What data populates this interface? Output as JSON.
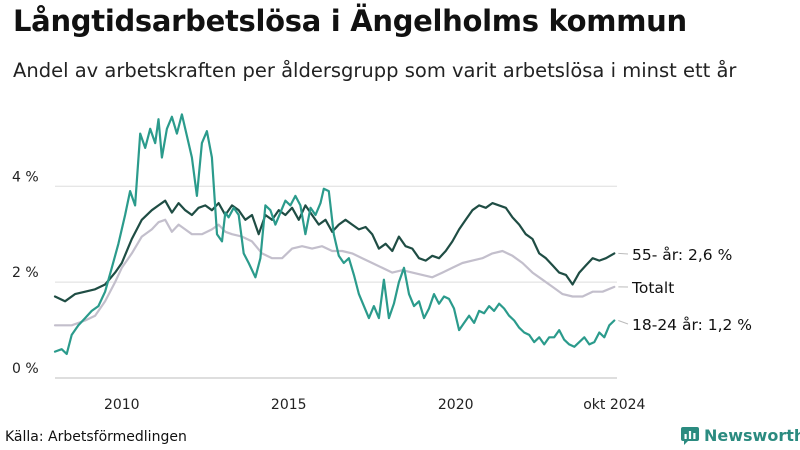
{
  "brand": {
    "name": "Newsworthy",
    "icon": "newsworthy-logo-icon",
    "color": "#2b8b80"
  },
  "source": "Källa: Arbetsförmedlingen",
  "chart_data": {
    "type": "line",
    "title": "Långtidsarbetslösa i Ängelholms kommun",
    "subtitle": "Andel av arbetskraften per åldersgrupp som varit arbetslösa i minst ett år",
    "xlabel": "",
    "ylabel": "",
    "xlim": [
      2008.0,
      2024.83
    ],
    "ylim": [
      0,
      5.8
    ],
    "y_ticks": [
      {
        "value": 0,
        "label": "0 %"
      },
      {
        "value": 2,
        "label": "2 %"
      },
      {
        "value": 4,
        "label": "4 %"
      }
    ],
    "x_ticks": [
      {
        "value": 2010,
        "label": "2010"
      },
      {
        "value": 2015,
        "label": "2015"
      },
      {
        "value": 2020,
        "label": "2020"
      },
      {
        "value": 2024.75,
        "label": "okt 2024"
      }
    ],
    "grid": "horizontal",
    "legend": "end-labels",
    "series": [
      {
        "name": "55- år",
        "end_label": "55- år: 2,6 %",
        "color": "#1f4d44",
        "points": [
          [
            2008.0,
            1.7
          ],
          [
            2008.3,
            1.6
          ],
          [
            2008.6,
            1.75
          ],
          [
            2008.9,
            1.8
          ],
          [
            2009.2,
            1.85
          ],
          [
            2009.5,
            1.95
          ],
          [
            2009.8,
            2.2
          ],
          [
            2010.0,
            2.4
          ],
          [
            2010.3,
            2.9
          ],
          [
            2010.6,
            3.3
          ],
          [
            2010.9,
            3.5
          ],
          [
            2011.1,
            3.6
          ],
          [
            2011.3,
            3.7
          ],
          [
            2011.5,
            3.45
          ],
          [
            2011.7,
            3.65
          ],
          [
            2011.9,
            3.5
          ],
          [
            2012.1,
            3.4
          ],
          [
            2012.3,
            3.55
          ],
          [
            2012.5,
            3.6
          ],
          [
            2012.7,
            3.5
          ],
          [
            2012.9,
            3.65
          ],
          [
            2013.1,
            3.4
          ],
          [
            2013.3,
            3.6
          ],
          [
            2013.5,
            3.5
          ],
          [
            2013.7,
            3.3
          ],
          [
            2013.9,
            3.4
          ],
          [
            2014.1,
            3.0
          ],
          [
            2014.3,
            3.4
          ],
          [
            2014.5,
            3.3
          ],
          [
            2014.7,
            3.5
          ],
          [
            2014.9,
            3.4
          ],
          [
            2015.1,
            3.55
          ],
          [
            2015.3,
            3.3
          ],
          [
            2015.5,
            3.6
          ],
          [
            2015.7,
            3.4
          ],
          [
            2015.9,
            3.2
          ],
          [
            2016.1,
            3.3
          ],
          [
            2016.3,
            3.05
          ],
          [
            2016.5,
            3.2
          ],
          [
            2016.7,
            3.3
          ],
          [
            2016.9,
            3.2
          ],
          [
            2017.1,
            3.1
          ],
          [
            2017.3,
            3.15
          ],
          [
            2017.5,
            3.0
          ],
          [
            2017.7,
            2.7
          ],
          [
            2017.9,
            2.8
          ],
          [
            2018.1,
            2.65
          ],
          [
            2018.3,
            2.95
          ],
          [
            2018.5,
            2.75
          ],
          [
            2018.7,
            2.7
          ],
          [
            2018.9,
            2.5
          ],
          [
            2019.1,
            2.45
          ],
          [
            2019.3,
            2.55
          ],
          [
            2019.5,
            2.5
          ],
          [
            2019.7,
            2.65
          ],
          [
            2019.9,
            2.85
          ],
          [
            2020.1,
            3.1
          ],
          [
            2020.3,
            3.3
          ],
          [
            2020.5,
            3.5
          ],
          [
            2020.7,
            3.6
          ],
          [
            2020.9,
            3.55
          ],
          [
            2021.1,
            3.65
          ],
          [
            2021.3,
            3.6
          ],
          [
            2021.5,
            3.55
          ],
          [
            2021.7,
            3.35
          ],
          [
            2021.9,
            3.2
          ],
          [
            2022.1,
            3.0
          ],
          [
            2022.3,
            2.9
          ],
          [
            2022.5,
            2.6
          ],
          [
            2022.7,
            2.5
          ],
          [
            2022.9,
            2.35
          ],
          [
            2023.1,
            2.2
          ],
          [
            2023.3,
            2.15
          ],
          [
            2023.5,
            1.95
          ],
          [
            2023.7,
            2.2
          ],
          [
            2023.9,
            2.35
          ],
          [
            2024.1,
            2.5
          ],
          [
            2024.3,
            2.45
          ],
          [
            2024.5,
            2.5
          ],
          [
            2024.75,
            2.6
          ]
        ]
      },
      {
        "name": "Totalt",
        "end_label": "Totalt",
        "color": "#c3bfcc",
        "points": [
          [
            2008.0,
            1.1
          ],
          [
            2008.5,
            1.1
          ],
          [
            2008.9,
            1.2
          ],
          [
            2009.2,
            1.3
          ],
          [
            2009.5,
            1.6
          ],
          [
            2009.8,
            2.0
          ],
          [
            2010.0,
            2.3
          ],
          [
            2010.3,
            2.6
          ],
          [
            2010.6,
            2.95
          ],
          [
            2010.9,
            3.1
          ],
          [
            2011.1,
            3.25
          ],
          [
            2011.3,
            3.3
          ],
          [
            2011.5,
            3.05
          ],
          [
            2011.7,
            3.2
          ],
          [
            2011.9,
            3.1
          ],
          [
            2012.1,
            3.0
          ],
          [
            2012.4,
            3.0
          ],
          [
            2012.7,
            3.1
          ],
          [
            2012.9,
            3.2
          ],
          [
            2013.1,
            3.05
          ],
          [
            2013.3,
            3.0
          ],
          [
            2013.6,
            2.95
          ],
          [
            2013.9,
            2.85
          ],
          [
            2014.2,
            2.6
          ],
          [
            2014.5,
            2.5
          ],
          [
            2014.8,
            2.5
          ],
          [
            2015.1,
            2.7
          ],
          [
            2015.4,
            2.75
          ],
          [
            2015.7,
            2.7
          ],
          [
            2016.0,
            2.75
          ],
          [
            2016.3,
            2.65
          ],
          [
            2016.6,
            2.65
          ],
          [
            2016.9,
            2.6
          ],
          [
            2017.2,
            2.5
          ],
          [
            2017.5,
            2.4
          ],
          [
            2017.8,
            2.3
          ],
          [
            2018.1,
            2.2
          ],
          [
            2018.4,
            2.25
          ],
          [
            2018.7,
            2.2
          ],
          [
            2019.0,
            2.15
          ],
          [
            2019.3,
            2.1
          ],
          [
            2019.6,
            2.2
          ],
          [
            2019.9,
            2.3
          ],
          [
            2020.2,
            2.4
          ],
          [
            2020.5,
            2.45
          ],
          [
            2020.8,
            2.5
          ],
          [
            2021.1,
            2.6
          ],
          [
            2021.4,
            2.65
          ],
          [
            2021.7,
            2.55
          ],
          [
            2022.0,
            2.4
          ],
          [
            2022.3,
            2.2
          ],
          [
            2022.6,
            2.05
          ],
          [
            2022.9,
            1.9
          ],
          [
            2023.2,
            1.75
          ],
          [
            2023.5,
            1.7
          ],
          [
            2023.8,
            1.7
          ],
          [
            2024.1,
            1.8
          ],
          [
            2024.4,
            1.8
          ],
          [
            2024.75,
            1.9
          ]
        ]
      },
      {
        "name": "18-24 år",
        "end_label": "18-24 år: 1,2 %",
        "color": "#2b9b8c",
        "points": [
          [
            2008.0,
            0.55
          ],
          [
            2008.2,
            0.6
          ],
          [
            2008.35,
            0.5
          ],
          [
            2008.5,
            0.9
          ],
          [
            2008.7,
            1.1
          ],
          [
            2008.9,
            1.25
          ],
          [
            2009.1,
            1.4
          ],
          [
            2009.3,
            1.5
          ],
          [
            2009.5,
            1.8
          ],
          [
            2009.7,
            2.3
          ],
          [
            2009.9,
            2.8
          ],
          [
            2010.1,
            3.4
          ],
          [
            2010.25,
            3.9
          ],
          [
            2010.4,
            3.6
          ],
          [
            2010.55,
            5.1
          ],
          [
            2010.7,
            4.8
          ],
          [
            2010.85,
            5.2
          ],
          [
            2011.0,
            4.9
          ],
          [
            2011.1,
            5.4
          ],
          [
            2011.2,
            4.6
          ],
          [
            2011.35,
            5.2
          ],
          [
            2011.5,
            5.45
          ],
          [
            2011.65,
            5.1
          ],
          [
            2011.8,
            5.5
          ],
          [
            2011.95,
            5.05
          ],
          [
            2012.1,
            4.6
          ],
          [
            2012.25,
            3.8
          ],
          [
            2012.4,
            4.9
          ],
          [
            2012.55,
            5.15
          ],
          [
            2012.7,
            4.6
          ],
          [
            2012.85,
            3.0
          ],
          [
            2013.0,
            2.85
          ],
          [
            2013.1,
            3.45
          ],
          [
            2013.2,
            3.35
          ],
          [
            2013.35,
            3.55
          ],
          [
            2013.5,
            3.4
          ],
          [
            2013.65,
            2.6
          ],
          [
            2013.8,
            2.4
          ],
          [
            2014.0,
            2.1
          ],
          [
            2014.15,
            2.5
          ],
          [
            2014.3,
            3.6
          ],
          [
            2014.45,
            3.5
          ],
          [
            2014.6,
            3.2
          ],
          [
            2014.75,
            3.45
          ],
          [
            2014.9,
            3.7
          ],
          [
            2015.05,
            3.6
          ],
          [
            2015.2,
            3.8
          ],
          [
            2015.35,
            3.6
          ],
          [
            2015.5,
            3.0
          ],
          [
            2015.65,
            3.55
          ],
          [
            2015.8,
            3.4
          ],
          [
            2015.95,
            3.65
          ],
          [
            2016.05,
            3.95
          ],
          [
            2016.2,
            3.9
          ],
          [
            2016.35,
            3.0
          ],
          [
            2016.5,
            2.55
          ],
          [
            2016.65,
            2.4
          ],
          [
            2016.8,
            2.5
          ],
          [
            2016.95,
            2.15
          ],
          [
            2017.1,
            1.75
          ],
          [
            2017.25,
            1.5
          ],
          [
            2017.4,
            1.25
          ],
          [
            2017.55,
            1.5
          ],
          [
            2017.7,
            1.25
          ],
          [
            2017.85,
            2.05
          ],
          [
            2018.0,
            1.25
          ],
          [
            2018.15,
            1.55
          ],
          [
            2018.3,
            2.0
          ],
          [
            2018.45,
            2.3
          ],
          [
            2018.6,
            1.75
          ],
          [
            2018.75,
            1.5
          ],
          [
            2018.9,
            1.6
          ],
          [
            2019.05,
            1.25
          ],
          [
            2019.2,
            1.45
          ],
          [
            2019.35,
            1.75
          ],
          [
            2019.5,
            1.55
          ],
          [
            2019.65,
            1.7
          ],
          [
            2019.8,
            1.65
          ],
          [
            2019.95,
            1.45
          ],
          [
            2020.1,
            1.0
          ],
          [
            2020.25,
            1.15
          ],
          [
            2020.4,
            1.3
          ],
          [
            2020.55,
            1.15
          ],
          [
            2020.7,
            1.4
          ],
          [
            2020.85,
            1.35
          ],
          [
            2021.0,
            1.5
          ],
          [
            2021.15,
            1.4
          ],
          [
            2021.3,
            1.55
          ],
          [
            2021.45,
            1.45
          ],
          [
            2021.6,
            1.3
          ],
          [
            2021.75,
            1.2
          ],
          [
            2021.9,
            1.05
          ],
          [
            2022.05,
            0.95
          ],
          [
            2022.2,
            0.9
          ],
          [
            2022.35,
            0.75
          ],
          [
            2022.5,
            0.85
          ],
          [
            2022.65,
            0.7
          ],
          [
            2022.8,
            0.85
          ],
          [
            2022.95,
            0.85
          ],
          [
            2023.1,
            1.0
          ],
          [
            2023.25,
            0.8
          ],
          [
            2023.4,
            0.7
          ],
          [
            2023.55,
            0.65
          ],
          [
            2023.7,
            0.75
          ],
          [
            2023.85,
            0.85
          ],
          [
            2024.0,
            0.7
          ],
          [
            2024.15,
            0.75
          ],
          [
            2024.3,
            0.95
          ],
          [
            2024.45,
            0.85
          ],
          [
            2024.6,
            1.1
          ],
          [
            2024.75,
            1.2
          ]
        ]
      }
    ]
  }
}
